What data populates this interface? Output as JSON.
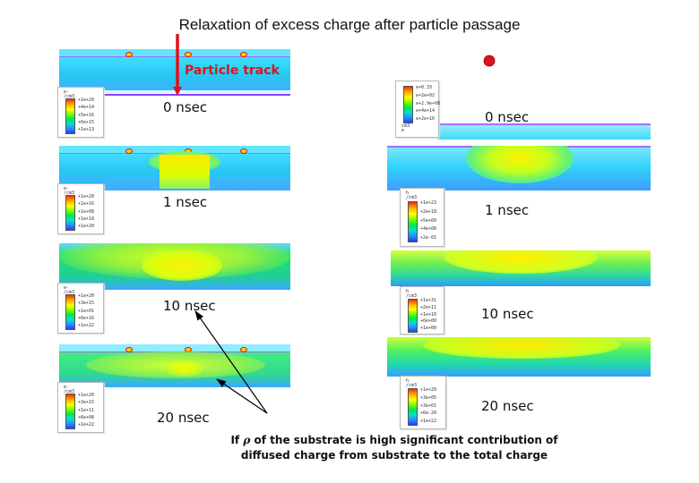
{
  "title": "Relaxation of excess charge after particle passage",
  "particle_track_label": "Particle track",
  "left_times": [
    "0 nsec",
    "1 nsec",
    "10 nsec",
    "20 nsec"
  ],
  "right_times": [
    "0 nsec",
    "1 nsec",
    "10 nsec",
    "20 nsec"
  ],
  "note": {
    "line1_prefix": "If",
    "rho": "ρ",
    "line1_suffix": "of the substrate is high significant contribution of",
    "line2": "diffused charge from substrate to the total charge"
  },
  "colors": {
    "track_arrow": "#e0121b",
    "marker_dot": "#e0121b",
    "pointer_arrows": "#000000"
  },
  "legends": {
    "left": [
      {
        "unit": "e-\n/cm3",
        "ticks": [
          "+1e+20",
          "+4e+14",
          "+5e+16",
          "+6e+15",
          "+1e+13"
        ]
      },
      {
        "unit": "e-\n/cm3",
        "ticks": [
          "+1e+20",
          "+1e+16",
          "+1e+08",
          "+1e+18",
          "+1e+20"
        ]
      },
      {
        "unit": "e-\n/cm3",
        "ticks": [
          "+1e+20",
          "+3e+15",
          "+1e+01",
          "+6e+16",
          "+1e+22"
        ]
      },
      {
        "unit": "e-\n/cm3",
        "ticks": [
          "+1e+20",
          "+3e+15",
          "+1e+11",
          "+6e+08",
          "+1e+22"
        ]
      }
    ],
    "right": [
      {
        "unit": "cm3\ne",
        "ticks": [
          "e+0.33",
          "e+2e+02",
          "e+2.9e+08",
          "e+4e+14",
          "e+2e+16"
        ]
      },
      {
        "unit": "h\n/cm3",
        "ticks": [
          "+1e+23",
          "+2e+18",
          "+5e+09",
          "+4e+08",
          "+2e-01"
        ]
      },
      {
        "unit": "h\n/cm3",
        "ticks": [
          "+1e+31",
          "+2e+11",
          "+1e+10",
          "+6e+00",
          "+1e+00"
        ]
      },
      {
        "unit": "h\n/cm3",
        "ticks": [
          "+1e+20",
          "+3e+05",
          "+3e+01",
          "+6e-20",
          "+1e+22"
        ]
      }
    ]
  }
}
